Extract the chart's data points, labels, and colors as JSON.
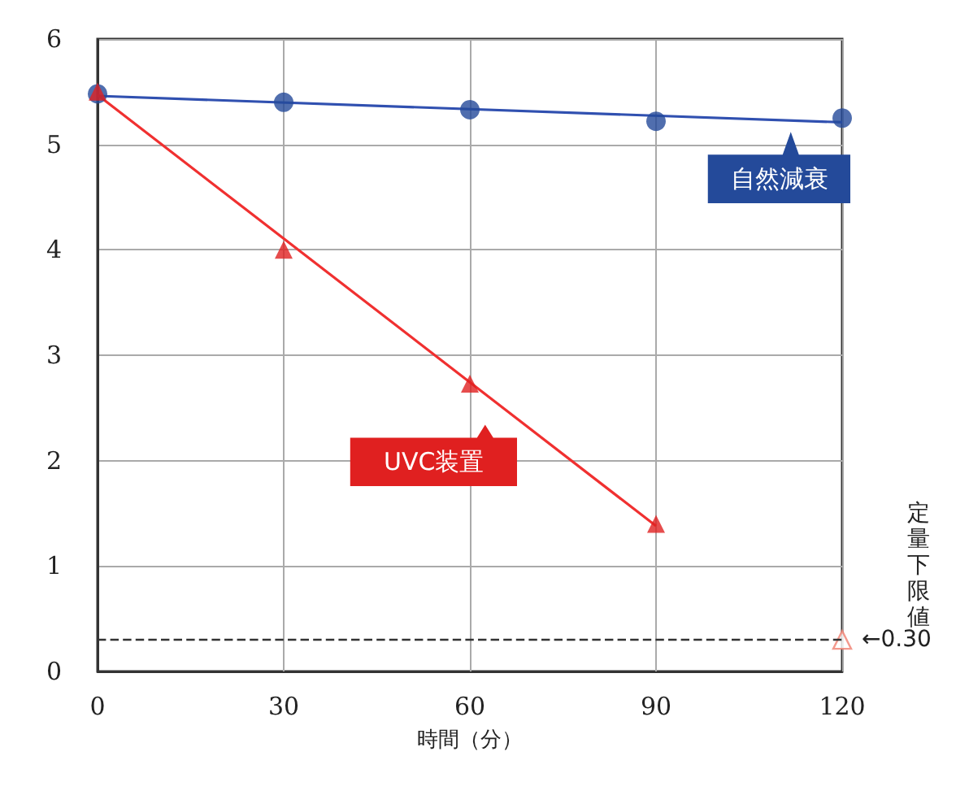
{
  "chart_data": {
    "type": "scatter",
    "xlabel": "時間（分）",
    "x": [
      0,
      30,
      60,
      90,
      120
    ],
    "series": [
      {
        "name": "自然減衰",
        "marker": "circle",
        "color": "#244a9a",
        "values": [
          5.48,
          5.4,
          5.33,
          5.22,
          5.25
        ]
      },
      {
        "name": "UVC装置",
        "marker": "triangle",
        "color": "#e02020",
        "values": [
          5.5,
          4.0,
          2.73,
          1.4,
          null
        ]
      },
      {
        "marker": "triangle",
        "color": "#f08070",
        "x": [
          120
        ],
        "values": [
          0.3
        ]
      },
      {
        "type": "line",
        "marker": "none",
        "color": "#3050b0",
        "x": [
          0,
          120
        ],
        "values": [
          5.46,
          5.21
        ]
      },
      {
        "type": "line",
        "marker": "none",
        "color": "#f03030",
        "x": [
          0,
          90
        ],
        "values": [
          5.47,
          1.38
        ]
      }
    ],
    "xlim": [
      0,
      120
    ],
    "xticks": [
      0,
      30,
      60,
      90,
      120
    ],
    "ylim": [
      0,
      6
    ],
    "yticks": [
      0,
      1,
      2,
      3,
      4,
      5,
      6
    ],
    "grid": true,
    "legend": false,
    "ref_lines": [
      {
        "axis": "y",
        "value": 0.3,
        "label": "←0.30",
        "color": "#333333",
        "line_style": "dashed"
      }
    ],
    "annotations": [
      "定量下限値"
    ]
  }
}
